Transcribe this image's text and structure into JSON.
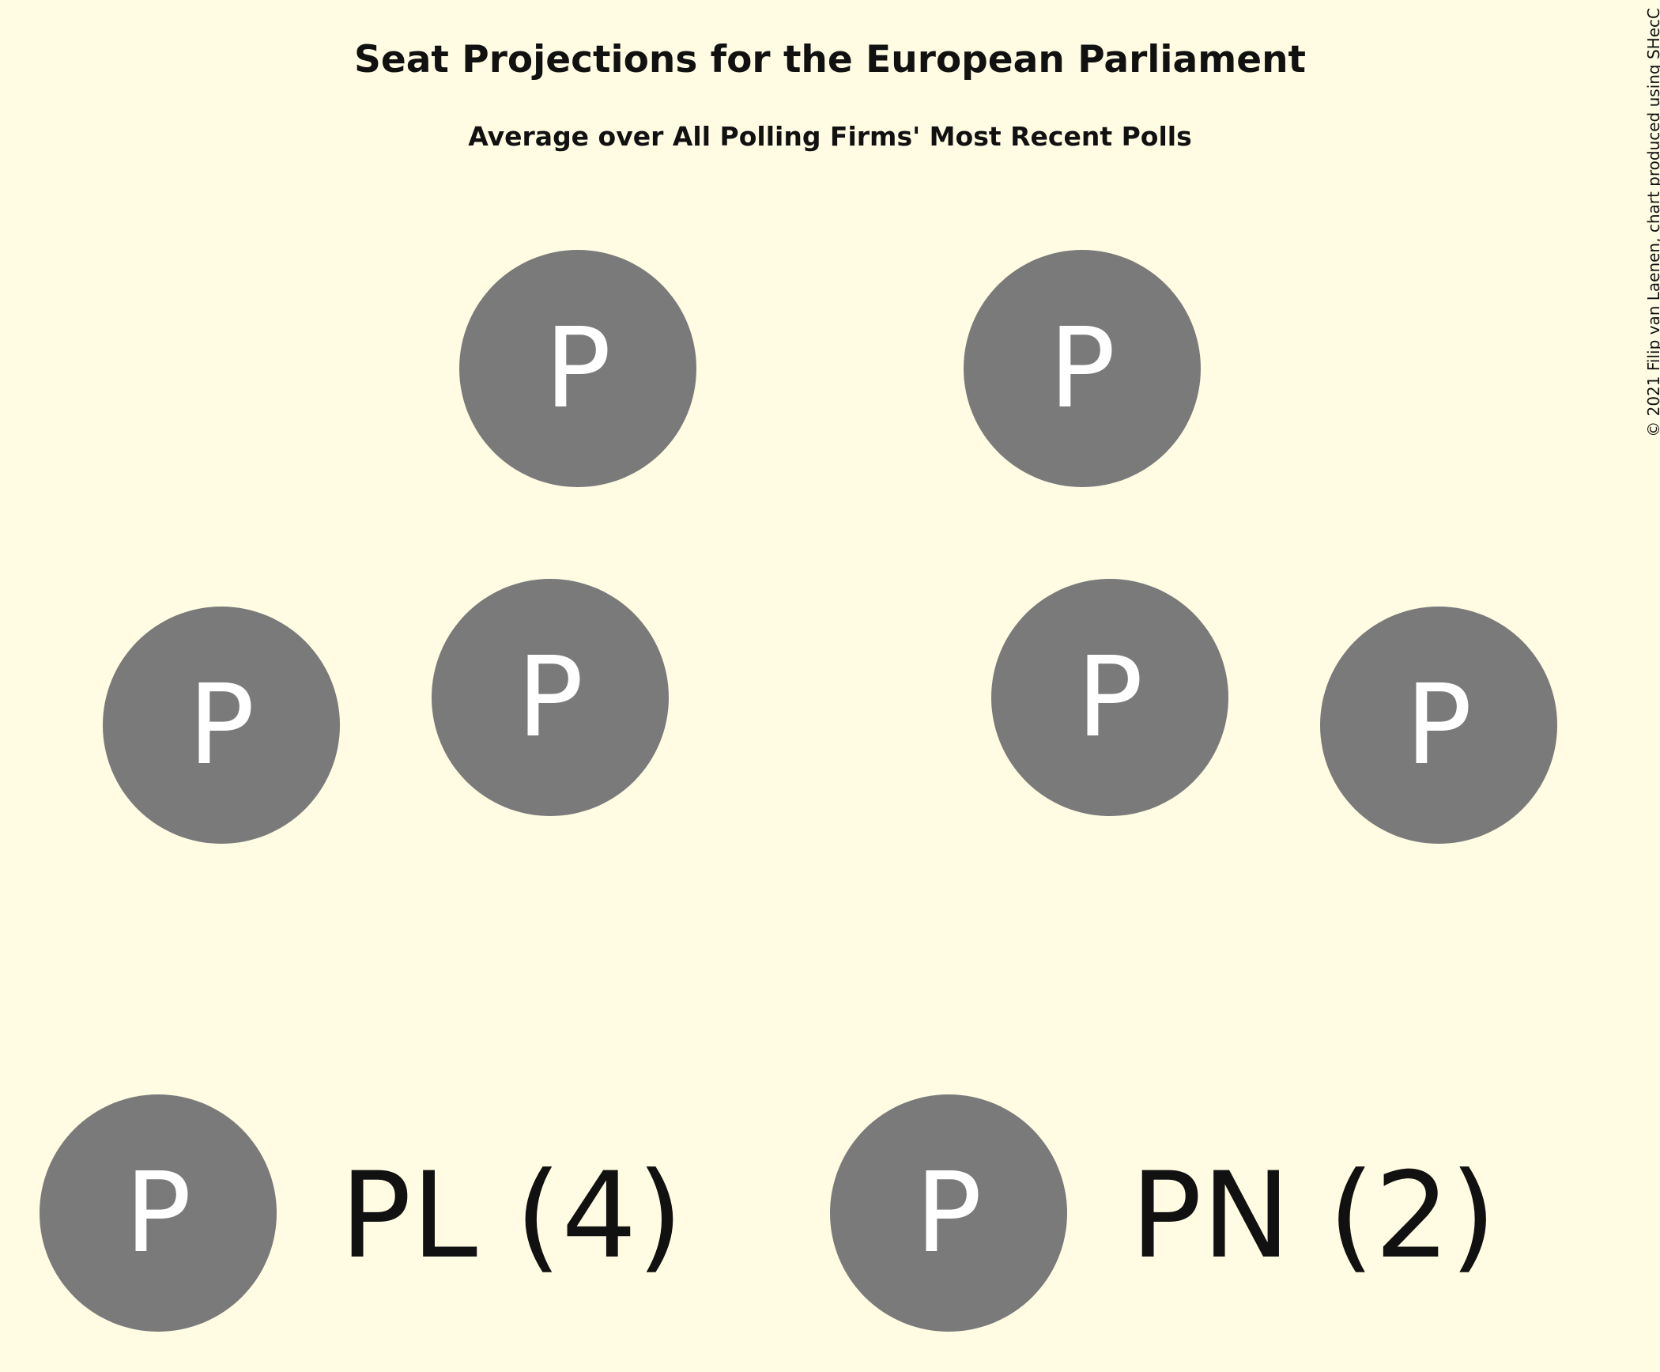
{
  "title": "Seat Projections for the European Parliament",
  "subtitle": "Average over All Polling Firms' Most Recent Polls",
  "copyright": "© 2021 Filip van Laenen, chart produced using SHecC",
  "colors": {
    "background": "#FFFCE3",
    "seat": "#7A7A7A",
    "seat_letter": "#FFFFFF",
    "text": "#111111"
  },
  "chart_data": {
    "type": "seat-plot",
    "title": "Seat Projections for the European Parliament",
    "subtitle": "Average over All Polling Firms' Most Recent Polls",
    "total_seats": 6,
    "seat_letter": "P",
    "series": [
      {
        "name": "PL",
        "seats": 4,
        "color": "#7A7A7A",
        "legend_label": "PL (4)"
      },
      {
        "name": "PN",
        "seats": 2,
        "color": "#7A7A7A",
        "legend_label": "PN (2)"
      }
    ]
  }
}
